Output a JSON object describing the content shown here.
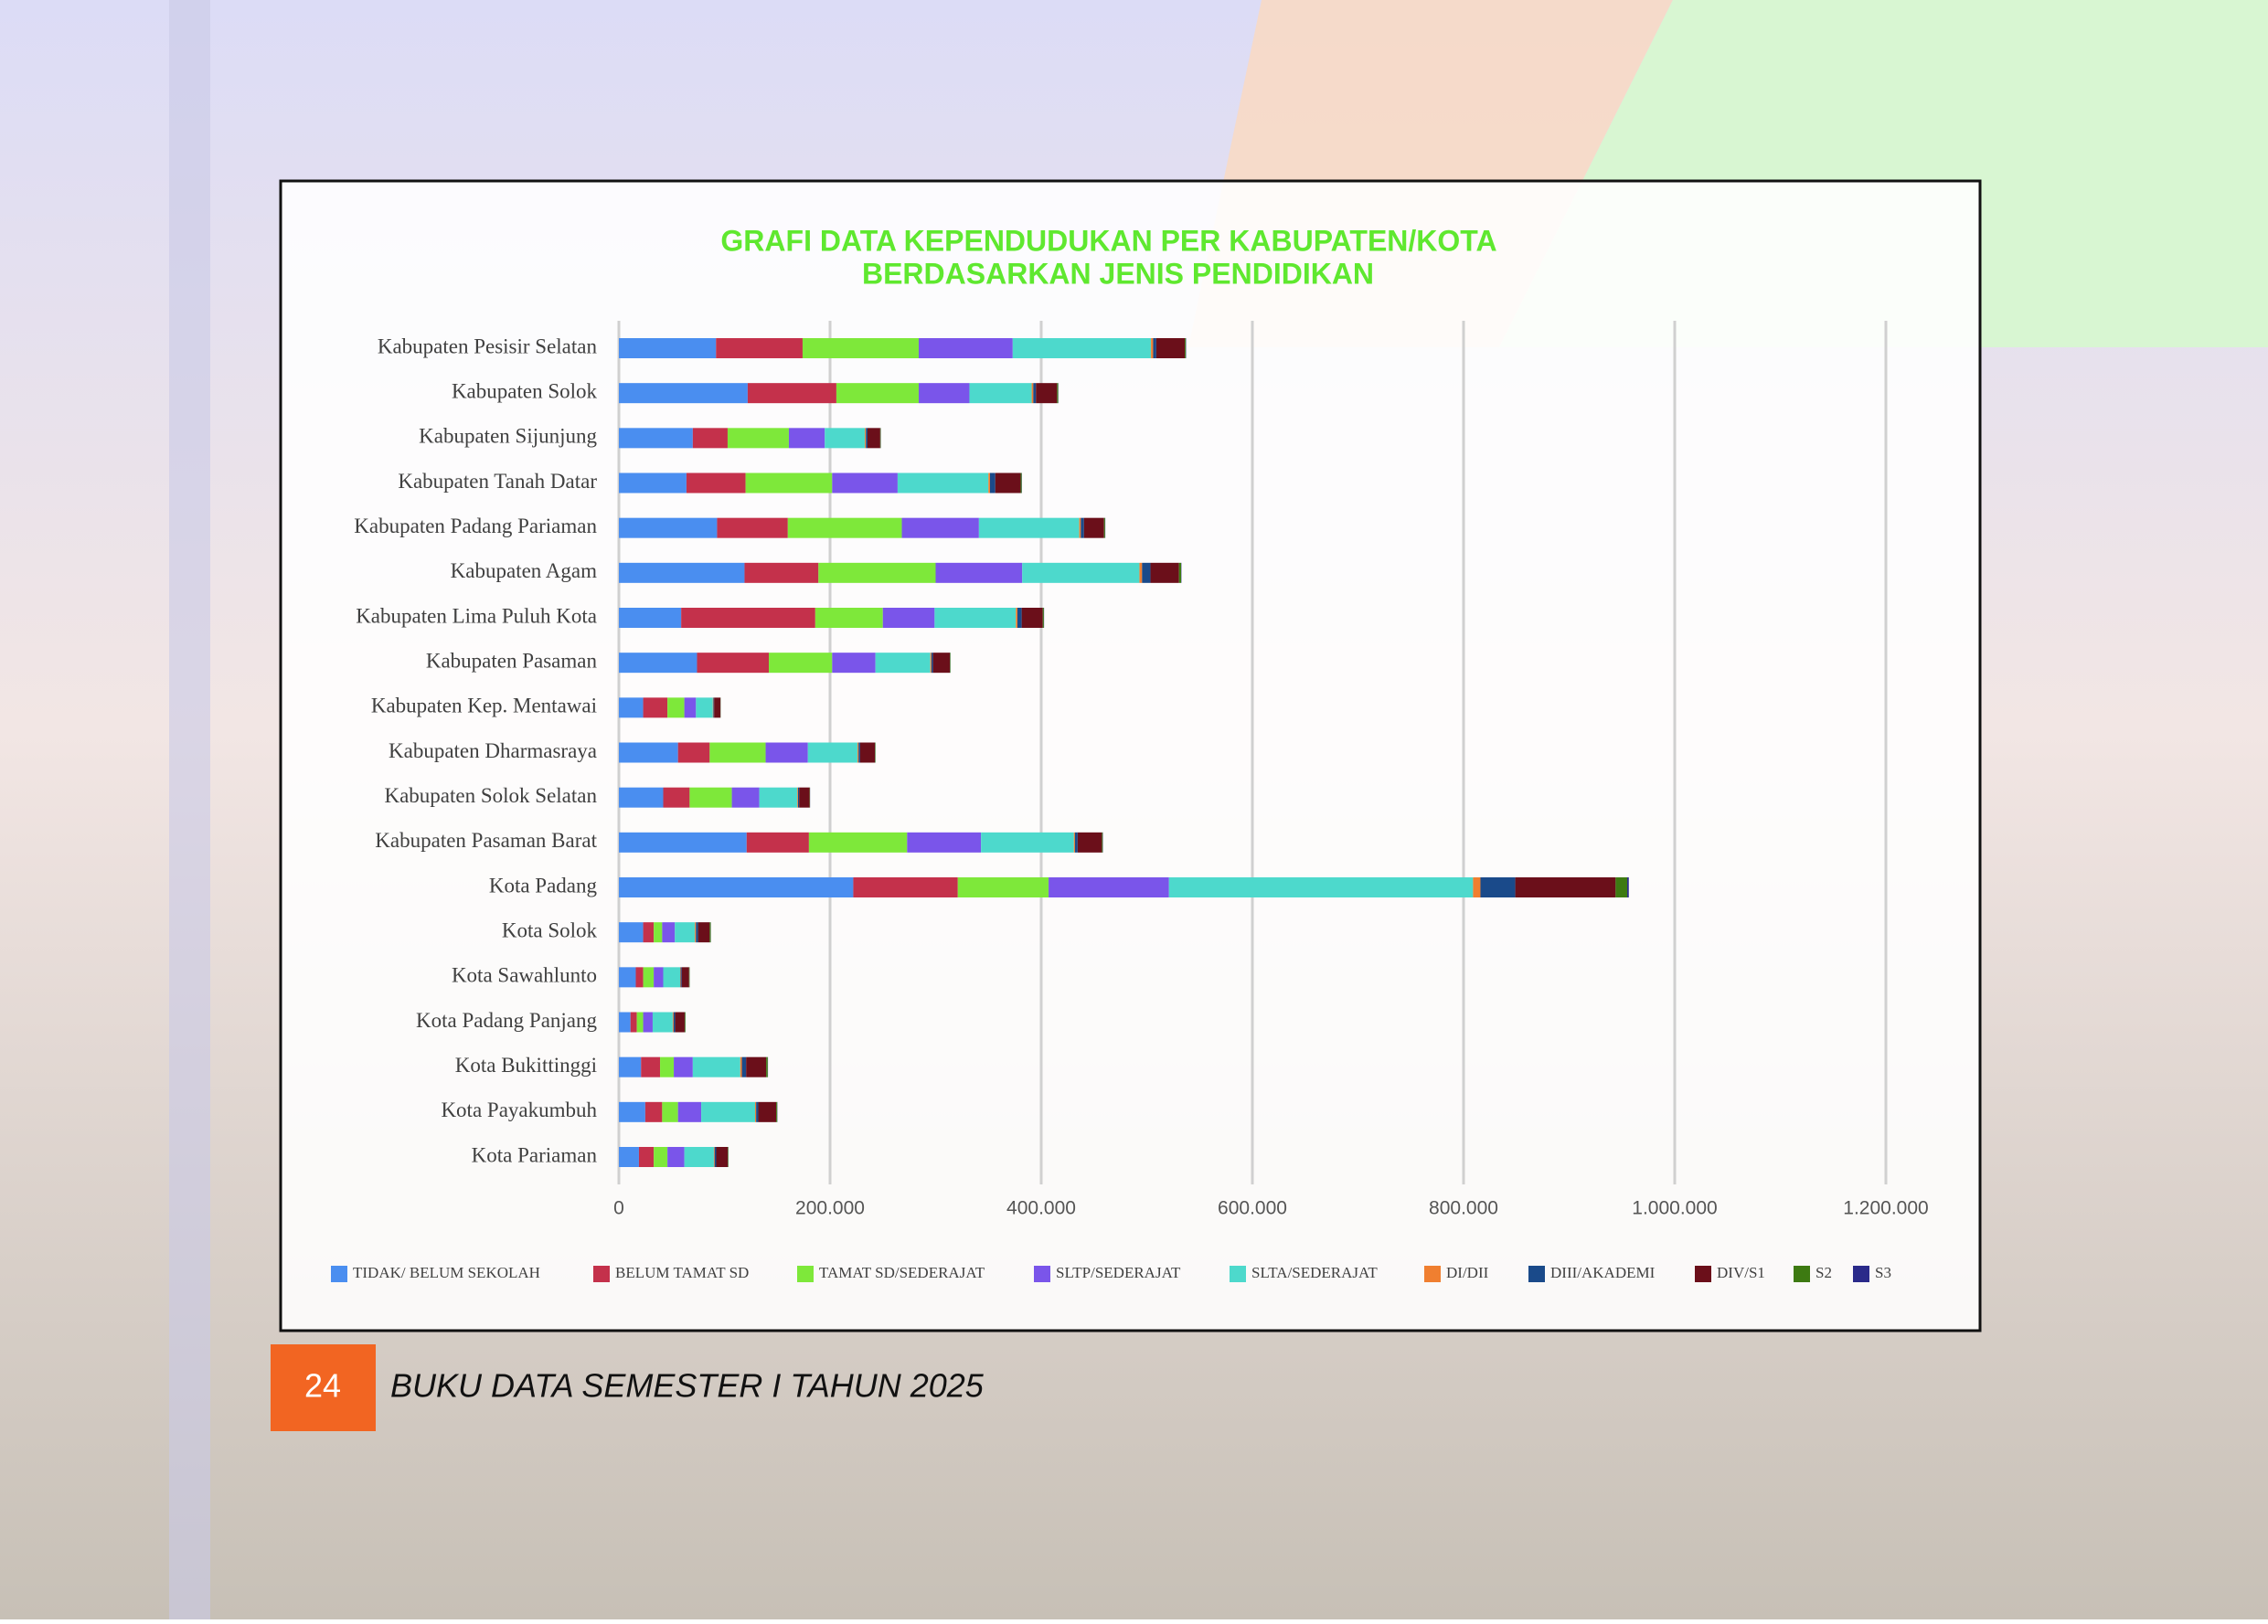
{
  "chart_data": {
    "type": "stacked_barh",
    "title": "GRAFI DATA KEPENDUDUKAN PER KABUPATEN/KOTA",
    "subtitle": "BERDASARKAN JENIS PENDIDIKAN",
    "categories": [
      "Kabupaten Pesisir Selatan",
      "Kabupaten Solok",
      "Kabupaten Sijunjung",
      "Kabupaten Tanah Datar",
      "Kabupaten Padang Pariaman",
      "Kabupaten Agam",
      "Kabupaten Lima Puluh Kota",
      "Kabupaten Pasaman",
      "Kabupaten Kep. Mentawai",
      "Kabupaten Dharmasraya",
      "Kabupaten Solok Selatan",
      "Kabupaten Pasaman Barat",
      "Kota Padang",
      "Kota Solok",
      "Kota Sawahlunto",
      "Kota Padang Panjang",
      "Kota Bukittinggi",
      "Kota Payakumbuh",
      "Kota Pariaman"
    ],
    "series": [
      {
        "name": "TIDAK/ BELUM SEKOLAH",
        "color": "#4a8ef0",
        "values": [
          92000,
          122000,
          70000,
          64000,
          93000,
          119000,
          59000,
          74000,
          23000,
          56000,
          42000,
          121000,
          222000,
          23000,
          16000,
          11000,
          21000,
          25000,
          19000
        ]
      },
      {
        "name": "BELUM TAMAT SD",
        "color": "#c4314b",
        "values": [
          82000,
          84000,
          33000,
          56000,
          67000,
          70000,
          127000,
          68000,
          23000,
          30000,
          25000,
          59000,
          99000,
          10000,
          7000,
          6000,
          18000,
          16000,
          14000
        ]
      },
      {
        "name": "TAMAT SD/SEDERAJAT",
        "color": "#7ee83a",
        "values": [
          110000,
          78000,
          58000,
          82000,
          108000,
          111000,
          64000,
          60000,
          16000,
          53000,
          40000,
          93000,
          86000,
          8000,
          10000,
          6000,
          13000,
          15000,
          13000
        ]
      },
      {
        "name": "SLTP/SEDERAJAT",
        "color": "#7a55ea",
        "values": [
          89000,
          48000,
          34000,
          62000,
          73000,
          82000,
          49000,
          41000,
          11000,
          40000,
          26000,
          70000,
          114000,
          12000,
          9000,
          9000,
          18000,
          22000,
          16000
        ]
      },
      {
        "name": "SLTA/SEDERAJAT",
        "color": "#4dd9cc",
        "values": [
          131000,
          59000,
          38000,
          86000,
          95000,
          111000,
          77000,
          52000,
          16000,
          47000,
          36000,
          88000,
          288000,
          19000,
          16000,
          19000,
          45000,
          51000,
          28000
        ]
      },
      {
        "name": "DI/DII",
        "color": "#f07f30",
        "values": [
          2000,
          1500,
          1000,
          1500,
          1500,
          2500,
          1500,
          1000,
          500,
          1000,
          700,
          1000,
          7000,
          1000,
          500,
          800,
          1500,
          1000,
          700
        ]
      },
      {
        "name": "DIII/AKADEMI",
        "color": "#1a4a8a",
        "values": [
          3000,
          2500,
          1500,
          5000,
          3000,
          8000,
          4000,
          1500,
          700,
          1500,
          1000,
          2500,
          33000,
          2000,
          1000,
          1500,
          4000,
          2000,
          1500
        ]
      },
      {
        "name": "DIV/S1",
        "color": "#6b0f1a",
        "values": [
          27000,
          20000,
          12000,
          24000,
          19000,
          27000,
          20000,
          16000,
          6000,
          14000,
          10000,
          23000,
          95000,
          11000,
          7000,
          9000,
          19000,
          17000,
          11000
        ]
      },
      {
        "name": "S2",
        "color": "#3d7a12",
        "values": [
          1000,
          1000,
          500,
          1000,
          1000,
          2000,
          1000,
          500,
          200,
          500,
          300,
          800,
          11000,
          1000,
          500,
          700,
          1500,
          1000,
          500
        ]
      },
      {
        "name": "S3",
        "color": "#2a2a8a",
        "values": [
          300,
          200,
          100,
          200,
          200,
          300,
          200,
          100,
          50,
          100,
          100,
          200,
          1500,
          100,
          50,
          100,
          200,
          200,
          100
        ]
      }
    ],
    "xlim": [
      0,
      1200000
    ],
    "xticks": [
      0,
      {
        "value": 200000,
        "label": "200.000"
      },
      {
        "value": 400000,
        "label": "400.000"
      },
      {
        "value": 600000,
        "label": "600.000"
      },
      {
        "value": 800000,
        "label": "800.000"
      },
      {
        "value": 1000000,
        "label": "1.000.000"
      },
      {
        "value": 1200000,
        "label": "1.200.000"
      }
    ],
    "grid": true,
    "legend": "bottom"
  },
  "footer": {
    "page": "24",
    "text": "BUKU DATA SEMESTER I TAHUN 2025"
  }
}
